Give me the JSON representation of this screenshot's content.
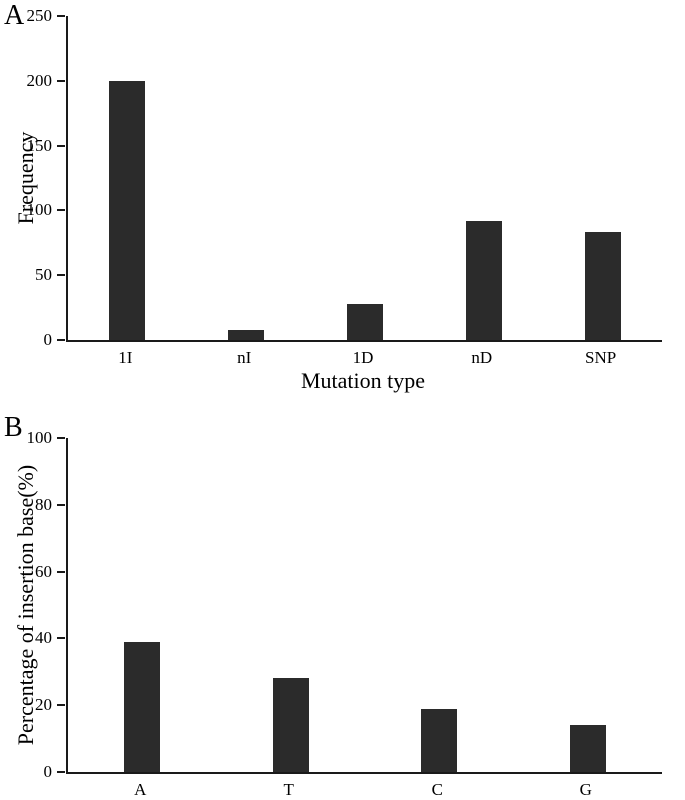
{
  "figure": {
    "background": "#ffffff",
    "axis_color": "#1a1a1a"
  },
  "chart_data": [
    {
      "type": "bar",
      "panel_label": "A",
      "title": "",
      "categories": [
        "1I",
        "nI",
        "1D",
        "nD",
        "SNP"
      ],
      "values": [
        200,
        8,
        28,
        92,
        83
      ],
      "xlabel": "Mutation type",
      "ylabel": "Frequency",
      "ylim": [
        0,
        250
      ],
      "yticks": [
        0,
        50,
        100,
        150,
        200,
        250
      ],
      "grid": false,
      "legend": false,
      "bar_color": "#2b2b2b"
    },
    {
      "type": "bar",
      "panel_label": "B",
      "title": "",
      "categories": [
        "A",
        "T",
        "C",
        "G"
      ],
      "values": [
        39,
        28,
        19,
        14
      ],
      "xlabel": "",
      "ylabel": "Percentage of insertion base(%)",
      "ylim": [
        0,
        100
      ],
      "yticks": [
        0,
        20,
        40,
        60,
        80,
        100
      ],
      "grid": false,
      "legend": false,
      "bar_color": "#2b2b2b"
    }
  ]
}
